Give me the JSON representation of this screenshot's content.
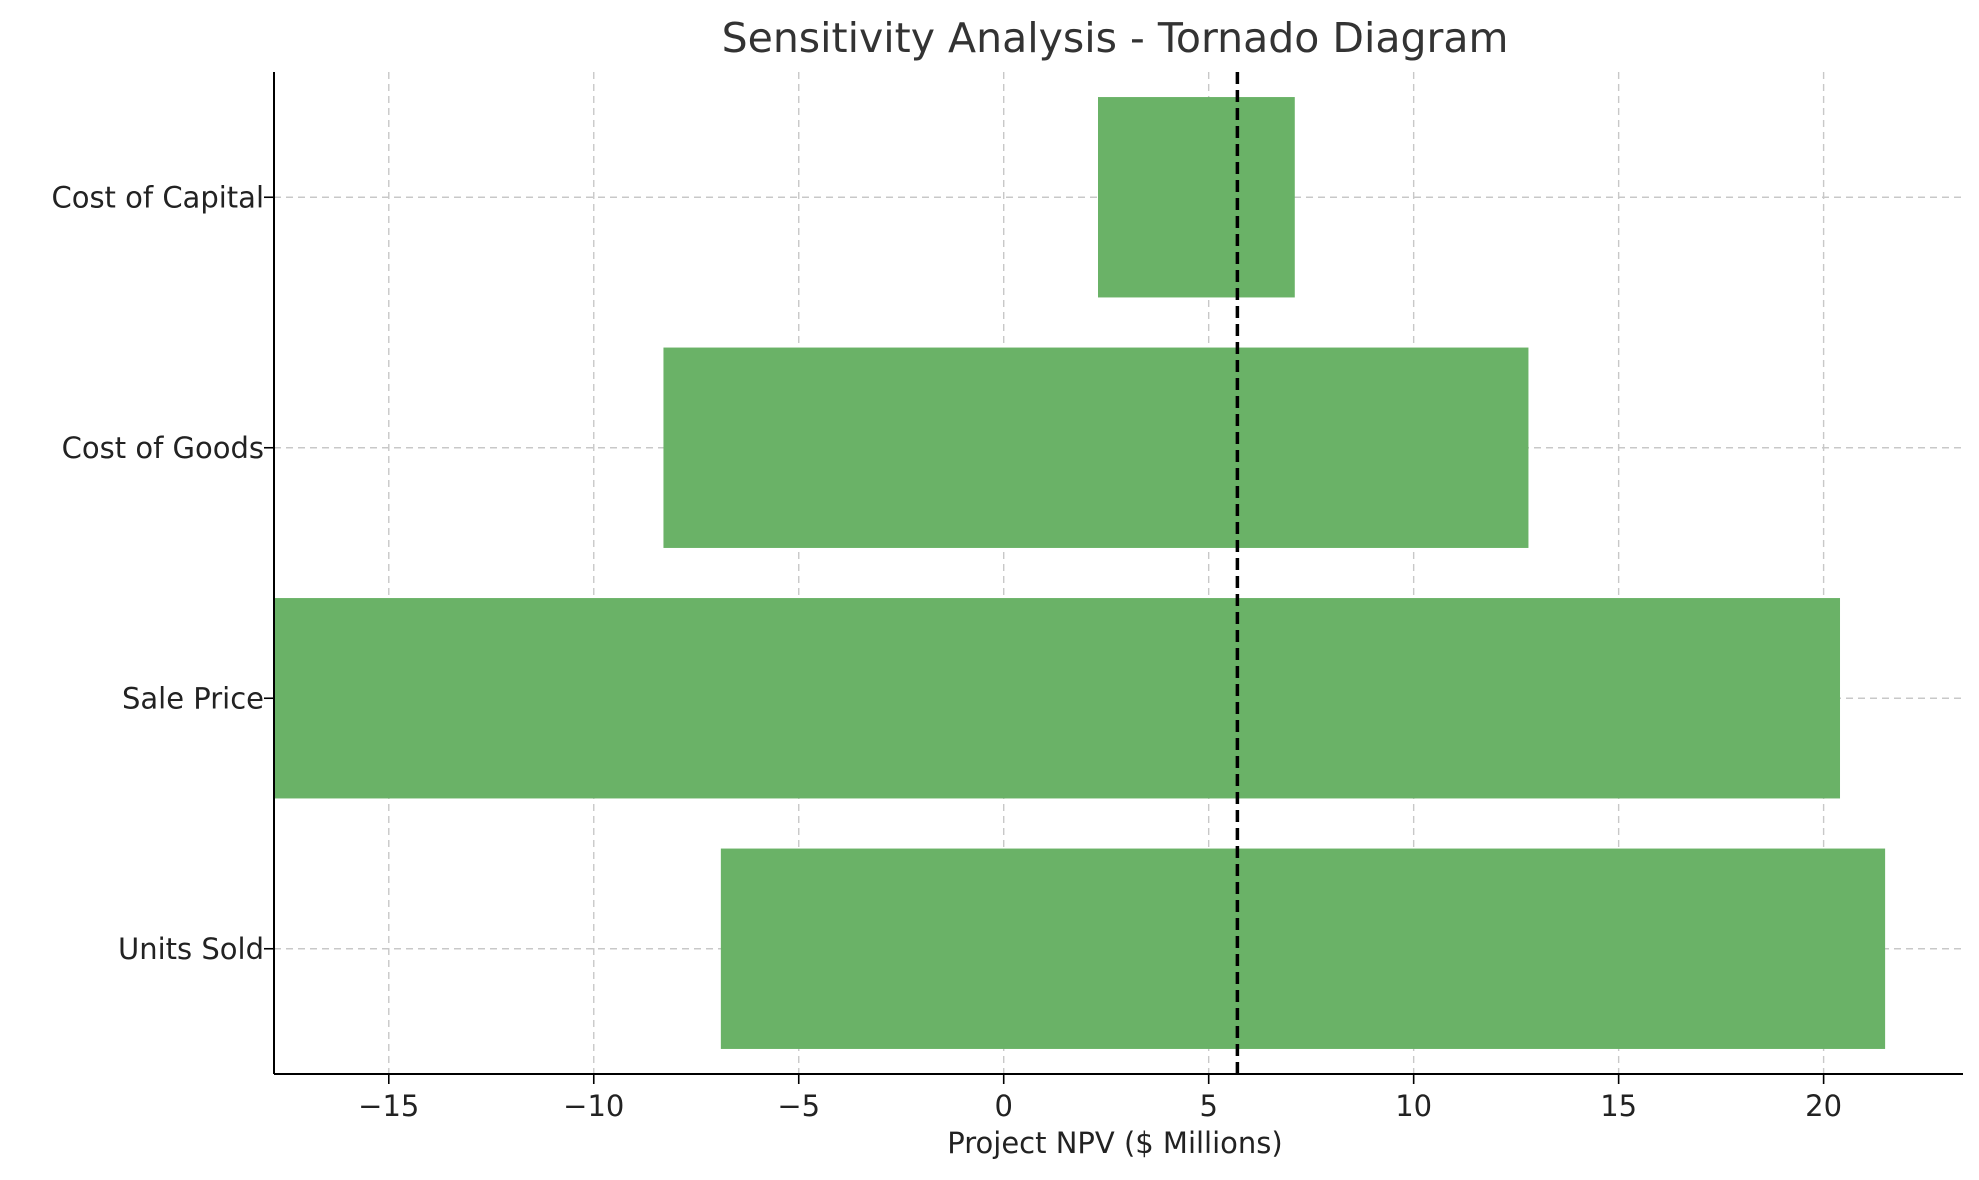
{
  "chart_data": {
    "type": "bar",
    "orientation": "horizontal",
    "title": "Sensitivity Analysis - Tornado Diagram",
    "xlabel": "Project NPV ($ Millions)",
    "ylabel": "",
    "xlim": [
      -17.8,
      23.4
    ],
    "xticks": [
      -15,
      -10,
      -5,
      0,
      5,
      10,
      15,
      20
    ],
    "xtick_labels": [
      "−15",
      "−10",
      "−5",
      "0",
      "5",
      "10",
      "15",
      "20"
    ],
    "categories": [
      "Units Sold",
      "Sale Price",
      "Cost of Goods",
      "Cost of Capital"
    ],
    "ranges": [
      {
        "low": -6.9,
        "high": 21.5
      },
      {
        "low": -17.8,
        "high": 20.4
      },
      {
        "low": -8.3,
        "high": 12.8
      },
      {
        "low": 2.3,
        "high": 7.1
      }
    ],
    "base_value": 5.7,
    "bar_color": "#6ab267",
    "base_line_color": "#000000",
    "grid": true
  }
}
